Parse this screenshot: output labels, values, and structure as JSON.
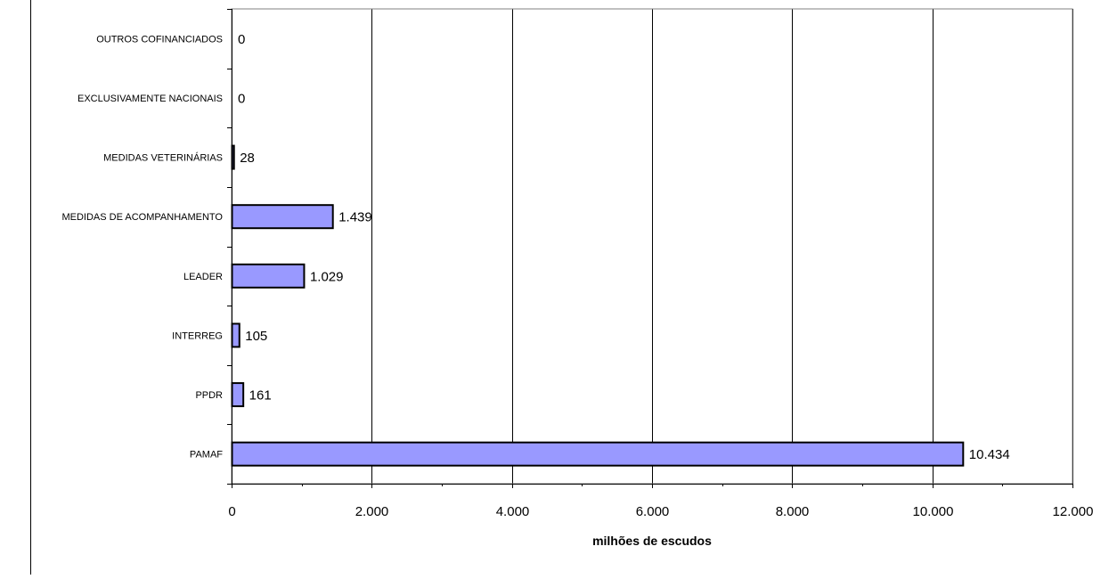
{
  "chart_data": {
    "type": "bar",
    "orientation": "horizontal",
    "categories": [
      "PAMAF",
      "PPDR",
      "INTERREG",
      "LEADER",
      "MEDIDAS DE ACOMPANHAMENTO",
      "MEDIDAS VETERINÁRIAS",
      "EXCLUSIVAMENTE NACIONAIS",
      "OUTROS COFINANCIADOS"
    ],
    "values": [
      10434,
      161,
      105,
      1029,
      1439,
      28,
      0,
      0
    ],
    "data_labels": [
      "10.434",
      "161",
      "105",
      "1.029",
      "1.439",
      "28",
      "0",
      "0"
    ],
    "xticks": [
      0,
      2000,
      4000,
      6000,
      8000,
      10000,
      12000
    ],
    "xtick_labels": [
      "0",
      "2.000",
      "4.000",
      "6.000",
      "8.000",
      "10.000",
      "12.000"
    ],
    "xlim": [
      0,
      12000
    ],
    "xlabel": "milhões de escudos",
    "grid": "vertical",
    "bar_color": "#9999ff",
    "bar_edge_color": "#000000"
  }
}
